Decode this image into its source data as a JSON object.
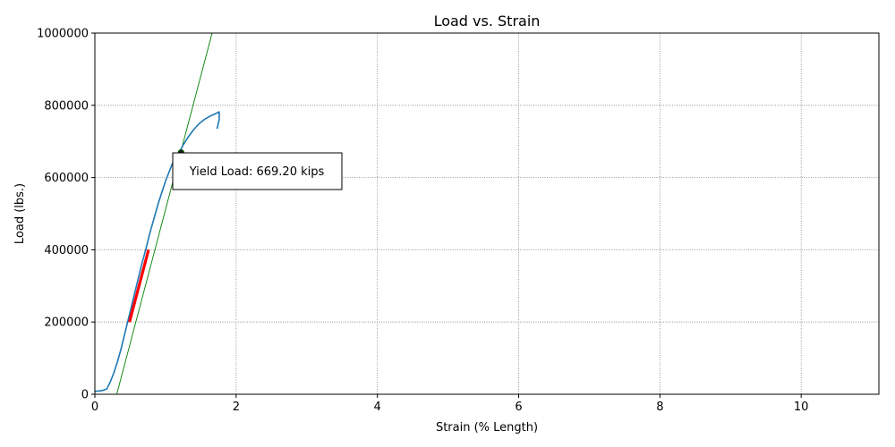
{
  "chart_data": {
    "type": "line",
    "title": "Load vs. Strain",
    "xlabel": "Strain (% Length)",
    "ylabel": "Load (lbs.)",
    "xlim": [
      0,
      11.1
    ],
    "ylim": [
      0,
      1000000
    ],
    "xticks": [
      0,
      2,
      4,
      6,
      8,
      10
    ],
    "yticks": [
      0,
      200000,
      400000,
      600000,
      800000,
      1000000
    ],
    "grid": true,
    "series": [
      {
        "role": "load-strain-curve",
        "color": "#1f77b4",
        "x": [
          0.0,
          0.1,
          0.17,
          0.22,
          0.27,
          0.32,
          0.37,
          0.42,
          0.47,
          0.52,
          0.57,
          0.62,
          0.67,
          0.72,
          0.77,
          0.82,
          0.9,
          1.0,
          1.1,
          1.18,
          1.25,
          1.32,
          1.4,
          1.48,
          1.56,
          1.64,
          1.7,
          1.76,
          1.76,
          1.73
        ],
        "y": [
          8000,
          10000,
          15000,
          35000,
          60000,
          90000,
          125000,
          165000,
          205000,
          245000,
          285000,
          325000,
          365000,
          400000,
          440000,
          475000,
          530000,
          590000,
          640000,
          665000,
          690000,
          712000,
          733000,
          750000,
          762000,
          771000,
          776000,
          782000,
          760000,
          735000
        ]
      },
      {
        "role": "linear-fit-region",
        "color": "#ff0000",
        "x": [
          0.49,
          0.76
        ],
        "y": [
          200000,
          400000
        ]
      },
      {
        "role": "offset-line",
        "color": "#008000",
        "x": [
          0.31,
          1.66
        ],
        "y": [
          0,
          1000000
        ]
      }
    ],
    "yield_point": {
      "x": 1.22,
      "y": 669200
    },
    "annotation": "Yield Load: 669.20 kips"
  }
}
